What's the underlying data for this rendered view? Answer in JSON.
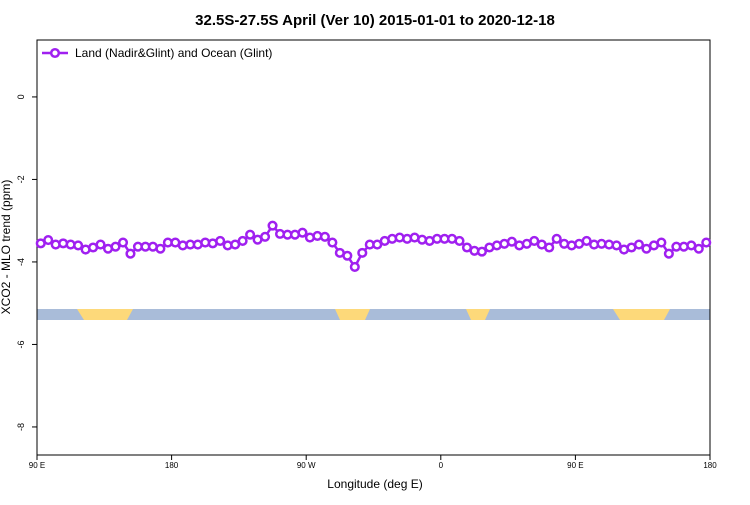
{
  "chart_data": {
    "type": "line",
    "title": "32.5S-27.5S April (Ver 10)   2015-01-01 to 2020-12-18",
    "x_label": "Longitude (deg E)",
    "y_label": "XCO2 - MLO trend (ppm)",
    "x": [
      92.5,
      97.5,
      102.5,
      107.5,
      112.5,
      117.5,
      122.5,
      127.5,
      132.5,
      137.5,
      142.5,
      147.5,
      152.5,
      157.5,
      162.5,
      167.5,
      172.5,
      177.5,
      182.5,
      187.5,
      192.5,
      197.5,
      202.5,
      207.5,
      212.5,
      217.5,
      222.5,
      227.5,
      232.5,
      237.5,
      242.5,
      247.5,
      252.5,
      257.5,
      262.5,
      267.5,
      272.5,
      277.5,
      282.5,
      287.5,
      292.5,
      297.5,
      302.5,
      307.5,
      312.5,
      317.5,
      322.5,
      327.5,
      332.5,
      337.5,
      342.5,
      347.5,
      352.5,
      357.5,
      362.5,
      367.5,
      372.5,
      377.5,
      382.5,
      387.5,
      392.5,
      397.5,
      402.5,
      407.5,
      412.5,
      417.5,
      422.5,
      427.5,
      432.5,
      437.5,
      442.5,
      447.5,
      452.5,
      457.5,
      462.5,
      467.5,
      472.5,
      477.5,
      482.5,
      487.5,
      492.5,
      497.5,
      502.5,
      507.5,
      512.5,
      517.5,
      522.5,
      527.5,
      532.5,
      537.5
    ],
    "series": [
      {
        "name": "Land (Nadir&Glint) and Ocean (Glint)",
        "color": "#a020f0",
        "values": [
          -3.55,
          -3.47,
          -3.58,
          -3.55,
          -3.58,
          -3.6,
          -3.7,
          -3.65,
          -3.58,
          -3.68,
          -3.63,
          -3.53,
          -3.8,
          -3.63,
          -3.63,
          -3.63,
          -3.68,
          -3.53,
          -3.53,
          -3.6,
          -3.58,
          -3.58,
          -3.53,
          -3.55,
          -3.49,
          -3.6,
          -3.58,
          -3.49,
          -3.34,
          -3.46,
          -3.39,
          -3.12,
          -3.32,
          -3.34,
          -3.34,
          -3.29,
          -3.41,
          -3.37,
          -3.39,
          -3.53,
          -3.78,
          -3.85,
          -4.12,
          -3.78,
          -3.58,
          -3.58,
          -3.49,
          -3.44,
          -3.41,
          -3.44,
          -3.41,
          -3.46,
          -3.49,
          -3.44,
          -3.44,
          -3.44,
          -3.49,
          -3.65,
          -3.73,
          -3.75,
          -3.65,
          -3.6,
          -3.56,
          -3.51,
          -3.6,
          -3.56,
          -3.49,
          -3.58,
          -3.65,
          -3.44,
          -3.56,
          -3.6,
          -3.56,
          -3.49,
          -3.58,
          -3.56,
          -3.58,
          -3.6,
          -3.7,
          -3.65,
          -3.58,
          -3.68,
          -3.6,
          -3.53,
          -3.8,
          -3.63,
          -3.63,
          -3.6,
          -3.68,
          -3.53
        ]
      }
    ],
    "xlim": [
      90,
      540
    ],
    "xticks": [
      {
        "value": 90,
        "label": "90 E"
      },
      180,
      {
        "value": 270,
        "label": "90 W"
      },
      {
        "value": 360,
        "label": "0"
      },
      {
        "value": 450,
        "label": "90 E"
      },
      {
        "value": 540,
        "label": "180"
      }
    ],
    "ylim": [
      -8.68,
      1.38
    ],
    "yticks": [
      0,
      -2,
      -4,
      -6,
      -8
    ],
    "legend": "top-left"
  }
}
